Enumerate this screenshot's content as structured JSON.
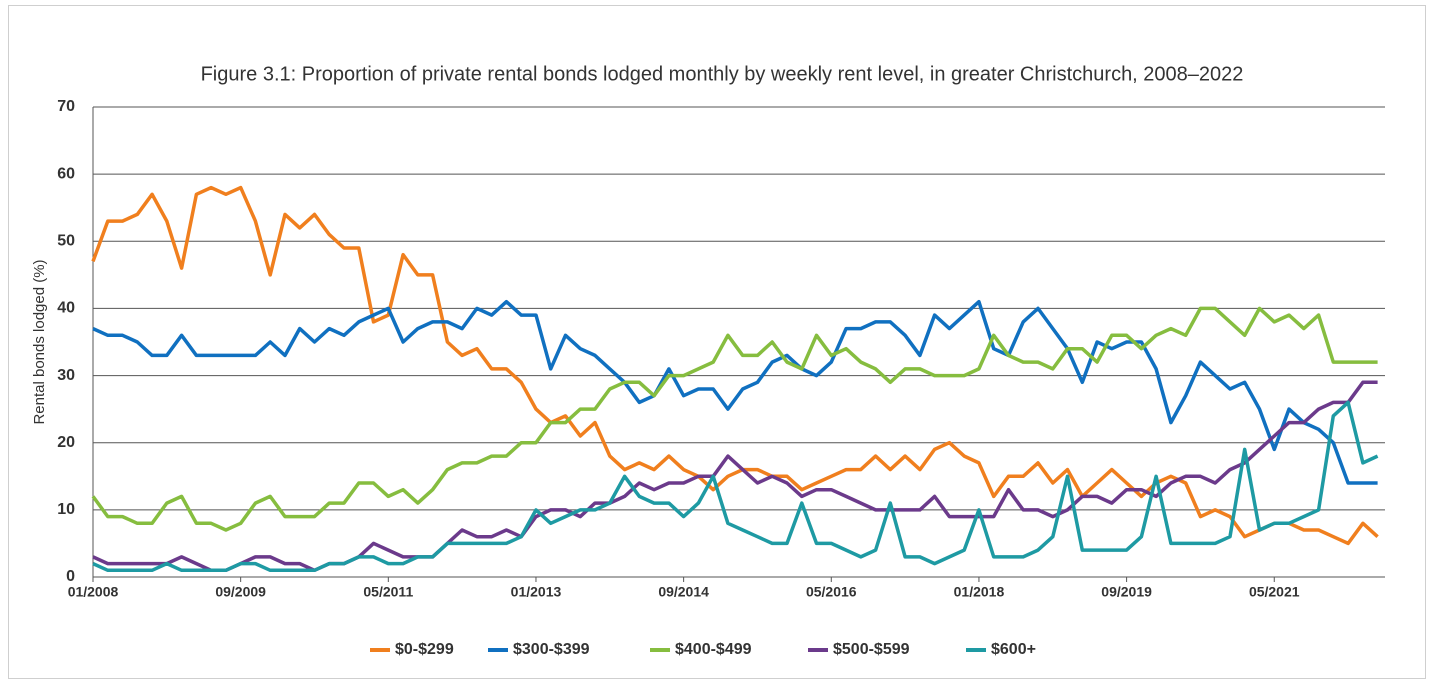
{
  "chart_data": {
    "type": "line",
    "title": "Figure 3.1: Proportion of private rental bonds lodged monthly by weekly rent level, in greater Christchurch, 2008–2022",
    "y_label": "Rental bonds lodged (%)",
    "categories": [
      "01/2008",
      null,
      null,
      null,
      null,
      null,
      null,
      null,
      null,
      null,
      "09/2009",
      null,
      null,
      null,
      null,
      null,
      null,
      null,
      null,
      null,
      "05/2011",
      null,
      null,
      null,
      null,
      null,
      null,
      null,
      null,
      null,
      "01/2013",
      null,
      null,
      null,
      null,
      null,
      null,
      null,
      null,
      null,
      "09/2014",
      null,
      null,
      null,
      null,
      null,
      null,
      null,
      null,
      null,
      "05/2016",
      null,
      null,
      null,
      null,
      null,
      null,
      null,
      null,
      null,
      "01/2018",
      null,
      null,
      null,
      null,
      null,
      null,
      null,
      null,
      null,
      "09/2019",
      null,
      null,
      null,
      null,
      null,
      null,
      null,
      null,
      null,
      "05/2021",
      null,
      null,
      null,
      null,
      null,
      null,
      null
    ],
    "ylim": [
      0,
      70
    ],
    "yticks": [
      0,
      10,
      20,
      30,
      40,
      50,
      60,
      70
    ],
    "grid": true,
    "legend": "bottom",
    "series": [
      {
        "name": "$0-$299",
        "color": "#f07f1e",
        "values": [
          47,
          53,
          53,
          54,
          57,
          53,
          46,
          57,
          58,
          57,
          58,
          53,
          45,
          54,
          52,
          54,
          51,
          49,
          49,
          38,
          39,
          48,
          45,
          45,
          35,
          33,
          34,
          31,
          31,
          29,
          25,
          23,
          24,
          21,
          23,
          18,
          16,
          17,
          16,
          18,
          16,
          15,
          13,
          15,
          16,
          16,
          15,
          15,
          13,
          14,
          15,
          16,
          16,
          18,
          16,
          18,
          16,
          19,
          20,
          18,
          17,
          12,
          15,
          15,
          17,
          14,
          16,
          12,
          14,
          16,
          14,
          12,
          14,
          15,
          14,
          9,
          10,
          9,
          6,
          7,
          8,
          8,
          7,
          7,
          6,
          5,
          8,
          6
        ]
      },
      {
        "name": "$300-$399",
        "color": "#1070c0",
        "values": [
          37,
          36,
          36,
          35,
          33,
          33,
          36,
          33,
          33,
          33,
          33,
          33,
          35,
          33,
          37,
          35,
          37,
          36,
          38,
          39,
          40,
          35,
          37,
          38,
          38,
          37,
          40,
          39,
          41,
          39,
          39,
          31,
          36,
          34,
          33,
          31,
          29,
          26,
          27,
          31,
          27,
          28,
          28,
          25,
          28,
          29,
          32,
          33,
          31,
          30,
          32,
          37,
          37,
          38,
          38,
          36,
          33,
          39,
          37,
          39,
          41,
          34,
          33,
          38,
          40,
          37,
          34,
          29,
          35,
          34,
          35,
          35,
          31,
          23,
          27,
          32,
          30,
          28,
          29,
          25,
          19,
          25,
          23,
          22,
          20,
          14,
          14,
          14
        ]
      },
      {
        "name": "$400-$499",
        "color": "#86bd3f",
        "values": [
          12,
          9,
          9,
          8,
          8,
          11,
          12,
          8,
          8,
          7,
          8,
          11,
          12,
          9,
          9,
          9,
          11,
          11,
          14,
          14,
          12,
          13,
          11,
          13,
          16,
          17,
          17,
          18,
          18,
          20,
          20,
          23,
          23,
          25,
          25,
          28,
          29,
          29,
          27,
          30,
          30,
          31,
          32,
          36,
          33,
          33,
          35,
          32,
          31,
          36,
          33,
          34,
          32,
          31,
          29,
          31,
          31,
          30,
          30,
          30,
          31,
          36,
          33,
          32,
          32,
          31,
          34,
          34,
          32,
          36,
          36,
          34,
          36,
          37,
          36,
          40,
          40,
          38,
          36,
          40,
          38,
          39,
          37,
          39,
          32,
          32,
          32,
          32
        ]
      },
      {
        "name": "$500-$599",
        "color": "#6b3a8b",
        "values": [
          3,
          2,
          2,
          2,
          2,
          2,
          3,
          2,
          1,
          1,
          2,
          3,
          3,
          2,
          2,
          1,
          2,
          2,
          3,
          5,
          4,
          3,
          3,
          3,
          5,
          7,
          6,
          6,
          7,
          6,
          9,
          10,
          10,
          9,
          11,
          11,
          12,
          14,
          13,
          14,
          14,
          15,
          15,
          18,
          16,
          14,
          15,
          14,
          12,
          13,
          13,
          12,
          11,
          10,
          10,
          10,
          10,
          12,
          9,
          9,
          9,
          9,
          13,
          10,
          10,
          9,
          10,
          12,
          12,
          11,
          13,
          13,
          12,
          14,
          15,
          15,
          14,
          16,
          17,
          19,
          21,
          23,
          23,
          25,
          26,
          26,
          29,
          29
        ]
      },
      {
        "name": "$600+",
        "color": "#1e9aa3",
        "values": [
          2,
          1,
          1,
          1,
          1,
          2,
          1,
          1,
          1,
          1,
          2,
          2,
          1,
          1,
          1,
          1,
          2,
          2,
          3,
          3,
          2,
          2,
          3,
          3,
          5,
          5,
          5,
          5,
          5,
          6,
          10,
          8,
          9,
          10,
          10,
          11,
          15,
          12,
          11,
          11,
          9,
          11,
          15,
          8,
          7,
          6,
          5,
          5,
          11,
          5,
          5,
          4,
          3,
          4,
          11,
          3,
          3,
          2,
          3,
          4,
          10,
          3,
          3,
          3,
          4,
          6,
          15,
          4,
          4,
          4,
          4,
          6,
          15,
          5,
          5,
          5,
          5,
          6,
          19,
          7,
          8,
          8,
          9,
          10,
          24,
          26,
          17,
          18
        ]
      }
    ]
  }
}
